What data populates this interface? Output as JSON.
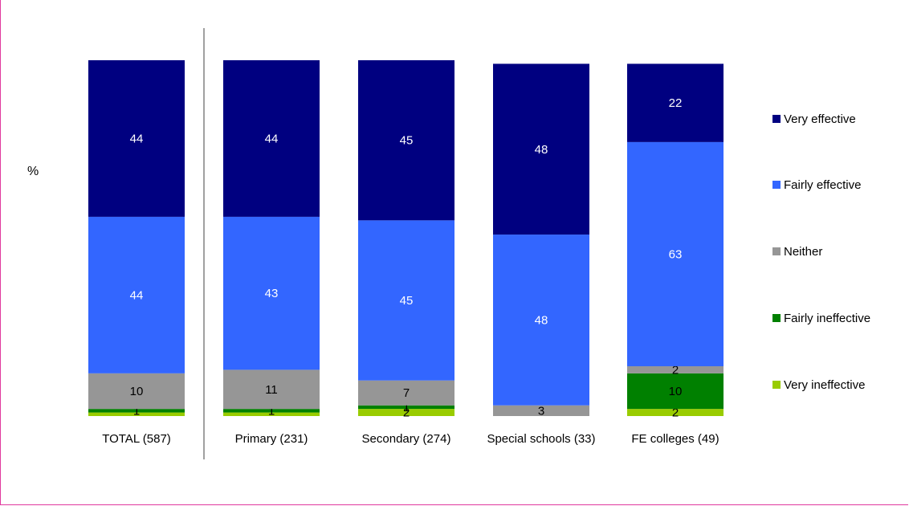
{
  "chart_data": {
    "type": "bar",
    "stacked": true,
    "ylabel": "%",
    "ylim": [
      0,
      100
    ],
    "grid": false,
    "legend_position": "right",
    "categories": [
      "TOTAL (587)",
      "Primary (231)",
      "Secondary (274)",
      "Special schools (33)",
      "FE colleges (49)"
    ],
    "series": [
      {
        "name": "Very ineffective",
        "color": "#99cc00",
        "values": [
          1,
          1,
          2,
          0,
          2
        ],
        "labels": [
          "",
          "",
          "2",
          "",
          "2"
        ]
      },
      {
        "name": "Fairly ineffective",
        "color": "#008000",
        "values": [
          1,
          1,
          1,
          0,
          10
        ],
        "labels": [
          "1",
          "1",
          "1",
          "",
          "10"
        ]
      },
      {
        "name": "Neither",
        "color": "#969696",
        "values": [
          10,
          11,
          7,
          3,
          2
        ],
        "labels": [
          "10",
          "11",
          "7",
          "3",
          "2"
        ]
      },
      {
        "name": "Fairly effective",
        "color": "#3366ff",
        "values": [
          44,
          43,
          45,
          48,
          63
        ],
        "labels": [
          "44",
          "43",
          "45",
          "48",
          "63"
        ]
      },
      {
        "name": "Very effective",
        "color": "#000080",
        "values": [
          44,
          44,
          45,
          48,
          22
        ],
        "labels": [
          "44",
          "44",
          "45",
          "48",
          "22"
        ]
      }
    ]
  }
}
